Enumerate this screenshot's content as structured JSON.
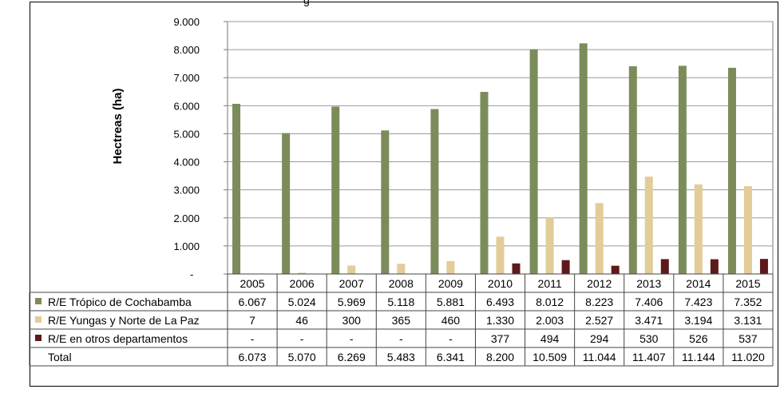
{
  "chart_data": {
    "type": "bar",
    "title_fragment": "g",
    "ylabel": "Hectreas (ha)",
    "ylim": [
      0,
      9000
    ],
    "yticks": [
      "-",
      "1.000",
      "2.000",
      "3.000",
      "4.000",
      "5.000",
      "6.000",
      "7.000",
      "8.000",
      "9.000"
    ],
    "grid": true,
    "categories": [
      "2005",
      "2006",
      "2007",
      "2008",
      "2009",
      "2010",
      "2011",
      "2012",
      "2013",
      "2014",
      "2015"
    ],
    "series": [
      {
        "name": "R/E Trópico de Cochabamba",
        "color": "#7b8c5a",
        "values": [
          6067,
          5024,
          5969,
          5118,
          5881,
          6493,
          8012,
          8223,
          7406,
          7423,
          7352
        ],
        "labels": [
          "6.067",
          "5.024",
          "5.969",
          "5.118",
          "5.881",
          "6.493",
          "8.012",
          "8.223",
          "7.406",
          "7.423",
          "7.352"
        ]
      },
      {
        "name": "R/E Yungas y Norte de La Paz",
        "color": "#e2cc98",
        "values": [
          7,
          46,
          300,
          365,
          460,
          1330,
          2003,
          2527,
          3471,
          3194,
          3131
        ],
        "labels": [
          "7",
          "46",
          "300",
          "365",
          "460",
          "1.330",
          "2.003",
          "2.527",
          "3.471",
          "3.194",
          "3.131"
        ]
      },
      {
        "name": "R/E en otros departamentos",
        "color": "#5c1a1a",
        "values": [
          0,
          0,
          0,
          0,
          0,
          377,
          494,
          294,
          530,
          526,
          537
        ],
        "labels": [
          "-",
          "-",
          "-",
          "-",
          "-",
          "377",
          "494",
          "294",
          "530",
          "526",
          "537"
        ]
      }
    ],
    "total": {
      "name": "Total",
      "labels": [
        "6.073",
        "5.070",
        "6.269",
        "5.483",
        "6.341",
        "8.200",
        "10.509",
        "11.044",
        "11.407",
        "11.144",
        "11.020"
      ]
    }
  }
}
